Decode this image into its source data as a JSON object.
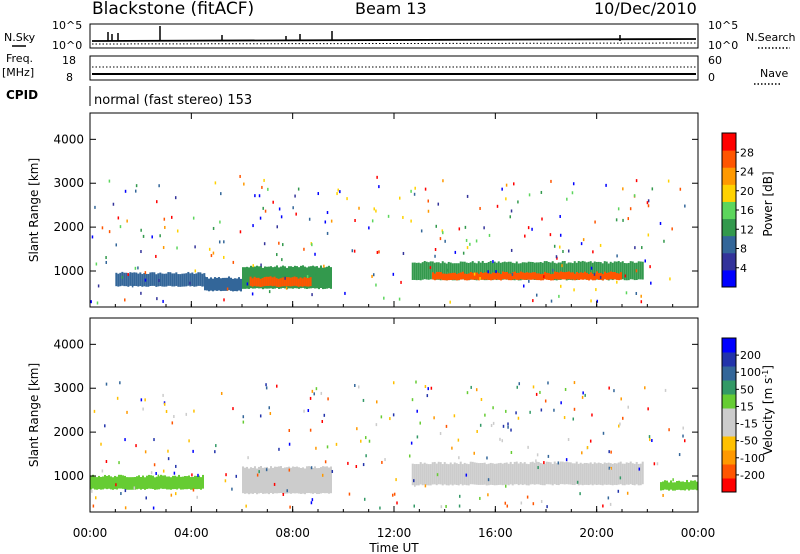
{
  "header": {
    "site": "Blackstone (fitACF)",
    "beam": "Beam 13",
    "date": "10/Dec/2010"
  },
  "nsky": {
    "label": "N.Sky",
    "yticks": [
      "10^5",
      "10^0"
    ]
  },
  "nsearch": {
    "label": "N.Search",
    "yticks": [
      "10^5",
      "10^0"
    ]
  },
  "freq": {
    "label_top": "Freq.",
    "label_units": "[MHz]",
    "yticks": [
      "18",
      "8"
    ]
  },
  "nave": {
    "label": "Nave",
    "yticks": [
      "60",
      "0"
    ]
  },
  "cpid": {
    "label": "CPID",
    "text": "normal (fast stereo) 153"
  },
  "colors": {
    "power": [
      "#0000ff",
      "#33339a",
      "#336699",
      "#33994d",
      "#5cd65c",
      "#ffd200",
      "#ff9900",
      "#ff5500",
      "#ff0000"
    ],
    "velocity": [
      "#ff0000",
      "#ff5500",
      "#ff9900",
      "#ffc000",
      "#cccccc",
      "#cccccc",
      "#66cc33",
      "#339966",
      "#336699",
      "#2233aa",
      "#0000ff"
    ]
  },
  "chart_data": [
    {
      "type": "heatmap",
      "title": "",
      "xlabel": "",
      "ylabel": "Slant Range [km]",
      "xticks": [
        "00:00",
        "04:00",
        "08:00",
        "12:00",
        "16:00",
        "20:00",
        "00:00"
      ],
      "yticks": [
        "1000",
        "2000",
        "3000",
        "4000"
      ],
      "xlim_hours": [
        0,
        24
      ],
      "ylim_km": [
        180,
        4600
      ],
      "colorbar": {
        "label": "Power [dB]",
        "ticks": [
          "4",
          "8",
          "12",
          "16",
          "20",
          "24",
          "28"
        ],
        "range": [
          0,
          32
        ]
      },
      "series": [
        {
          "t": [
            1.0,
            4.5
          ],
          "center_km": 800,
          "half_width_km": 150,
          "value": 8
        },
        {
          "t": [
            4.5,
            6.0
          ],
          "center_km": 700,
          "half_width_km": 150,
          "value": 10
        },
        {
          "t": [
            6.0,
            9.5
          ],
          "center_km": 850,
          "half_width_km": 250,
          "value": 14
        },
        {
          "t": [
            6.3,
            8.7
          ],
          "center_km": 750,
          "half_width_km": 100,
          "value": 28
        },
        {
          "t": [
            12.7,
            21.8
          ],
          "center_km": 1000,
          "half_width_km": 200,
          "value": 12
        },
        {
          "t": [
            13.5,
            21.0
          ],
          "center_km": 880,
          "half_width_km": 80,
          "value": 28
        }
      ]
    },
    {
      "type": "heatmap",
      "title": "",
      "xlabel": "Time UT",
      "ylabel": "Slant Range [km]",
      "xticks": [
        "00:00",
        "04:00",
        "08:00",
        "12:00",
        "16:00",
        "20:00",
        "00:00"
      ],
      "yticks": [
        "1000",
        "2000",
        "3000",
        "4000"
      ],
      "xlim_hours": [
        0,
        24
      ],
      "ylim_km": [
        180,
        4600
      ],
      "colorbar": {
        "label": "Velocity [m s^-1]",
        "ticks": [
          "-200",
          "-100",
          "-50",
          "-15",
          "15",
          "50",
          "100",
          "200"
        ],
        "range": [
          -250,
          250
        ]
      },
      "series": [
        {
          "t": [
            0.0,
            4.5
          ],
          "center_km": 850,
          "half_width_km": 150,
          "value": 30
        },
        {
          "t": [
            6.0,
            9.5
          ],
          "center_km": 900,
          "half_width_km": 300,
          "value": -40
        },
        {
          "t": [
            12.7,
            21.8
          ],
          "center_km": 1050,
          "half_width_km": 250,
          "value": 0
        },
        {
          "t": [
            22.5,
            24.0
          ],
          "center_km": 780,
          "half_width_km": 100,
          "value": 30
        }
      ]
    }
  ]
}
